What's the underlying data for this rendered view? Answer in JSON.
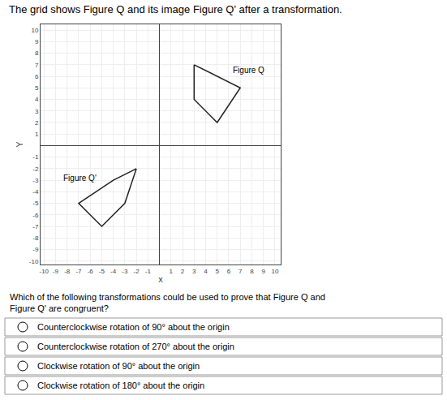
{
  "chart_data": {
    "type": "line",
    "title": "The grid shows Figure Q and its image Figure Q' after a transformation.",
    "x_label": "x",
    "y_label": "Y",
    "series": [
      {
        "color": "#222222",
        "x": [
          3,
          5,
          7,
          5,
          3,
          3
        ],
        "y": [
          7,
          6,
          5,
          2,
          4,
          7
        ]
      },
      {
        "color": "#222222",
        "x": [
          -2,
          -4,
          -7,
          -5,
          -3,
          -2
        ],
        "y": [
          -2,
          -3,
          -5,
          -7,
          -5,
          -2
        ]
      }
    ],
    "annotations": [
      {
        "text": "Figure Q",
        "x": 6.2,
        "y": 6.5
      },
      {
        "text": "Figure Q'",
        "x": -8.5,
        "y": -2.8
      }
    ],
    "xlim": [
      -10.3,
      10.5
    ],
    "ylim": [
      -10.3,
      10.5
    ],
    "xticks": [
      -10,
      -9,
      -8,
      -7,
      -6,
      -5,
      -4,
      -3,
      -2,
      -1,
      1,
      2,
      3,
      4,
      5,
      6,
      7,
      8,
      9,
      10
    ],
    "yticks": [
      -10,
      -9,
      -8,
      -7,
      -6,
      -5,
      -4,
      -3,
      -2,
      -1,
      1,
      2,
      3,
      4,
      5,
      6,
      7,
      8,
      9,
      10
    ],
    "grid": true,
    "question": "Which of the following transformations could be used to prove that Figure Q and Figure Q' are congruent?",
    "options": [
      "Counterclockwise rotation of 90° about the origin",
      "Counterclockwise rotation of 270° about the origin",
      "Clockwise rotation of 90° about the origin",
      "Clockwise rotation of 180° about the origin"
    ]
  }
}
